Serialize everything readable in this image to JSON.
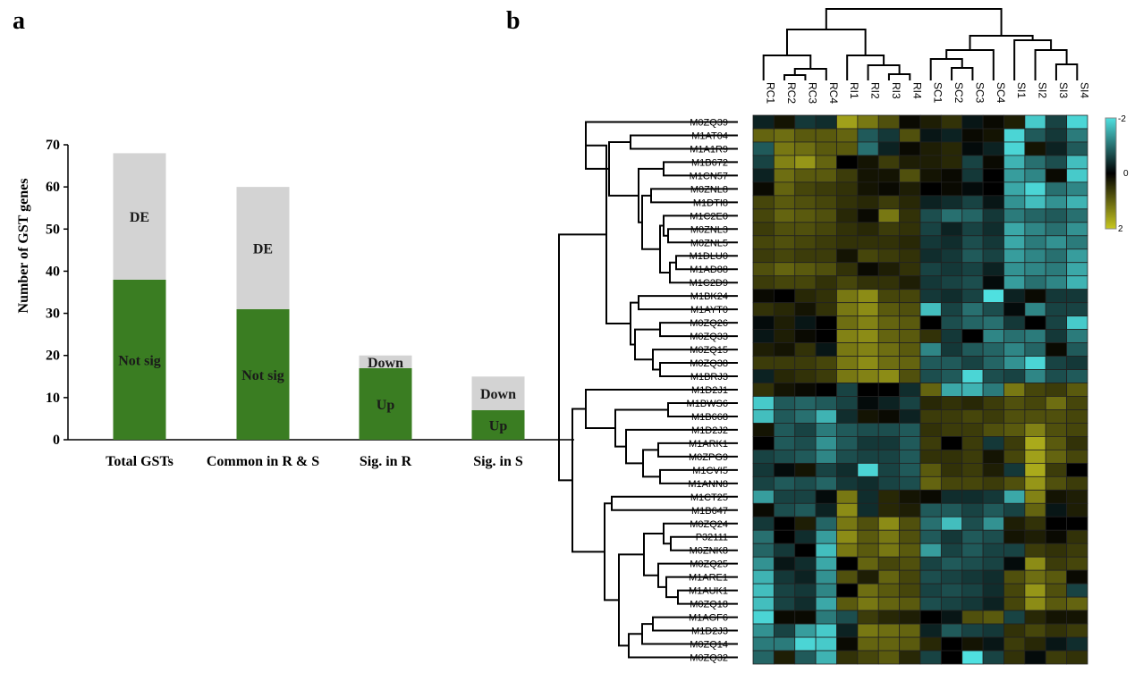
{
  "colors": {
    "up_green": "#3a7d22",
    "de_grey": "#d3d3d3",
    "heat_low": "#c8c820",
    "heat_mid": "#000000",
    "heat_high": "#4fe0e0"
  },
  "panels": {
    "a": "a",
    "b": "b"
  },
  "chart_data": [
    {
      "type": "bar",
      "stacked": true,
      "title": "",
      "xlabel": "",
      "ylabel": "Number of GST genes",
      "ylim": [
        0,
        70
      ],
      "yticks": [
        0,
        10,
        20,
        30,
        40,
        50,
        60,
        70
      ],
      "categories": [
        "Total GSTs",
        "Common in R & S",
        "Sig. in R",
        "Sig. in S"
      ],
      "segments": [
        {
          "category": "Total GSTs",
          "bottom": {
            "label": "Not sig",
            "value": 38
          },
          "top": {
            "label": "DE",
            "value": 30
          },
          "total": 68
        },
        {
          "category": "Common in R & S",
          "bottom": {
            "label": "Not sig",
            "value": 31
          },
          "top": {
            "label": "DE",
            "value": 29
          },
          "total": 60
        },
        {
          "category": "Sig. in R",
          "bottom": {
            "label": "Up",
            "value": 17
          },
          "top": {
            "label": "Down",
            "value": 3
          },
          "total": 20
        },
        {
          "category": "Sig. in S",
          "bottom": {
            "label": "Up",
            "value": 7
          },
          "top": {
            "label": "Down",
            "value": 8
          },
          "total": 15
        }
      ],
      "grid": false,
      "legend": "none"
    },
    {
      "type": "heatmap",
      "title": "",
      "columns": [
        "RC1",
        "RC2",
        "RC3",
        "RC4",
        "RI1",
        "RI2",
        "RI3",
        "RI4",
        "SC1",
        "SC2",
        "SC3",
        "SC4",
        "SI1",
        "SI2",
        "SI3",
        "SI4"
      ],
      "rows": [
        "M0ZQ39",
        "M1AT04",
        "M1A1R9",
        "M1B672",
        "M1CN57",
        "M0ZNL8",
        "M1DTI8",
        "M1C2E0",
        "M0ZNL3",
        "M0ZNL5",
        "M1DLU0",
        "M1AD88",
        "M1C2D9",
        "M1BK24",
        "M1AYT0",
        "M0ZQ26",
        "M0ZQ33",
        "M0ZQ15",
        "M0ZQ38",
        "M1BRJ3",
        "M1D2J1",
        "M1BWS6",
        "M1B668",
        "M1D2J2",
        "M1ARK1",
        "M0ZPG9",
        "M1CVI5",
        "M1ANN8",
        "M1CT25",
        "M1B647",
        "M0ZQ24",
        "P32111",
        "M0ZNK8",
        "M0ZQ25",
        "M1ARE1",
        "M1AUK1",
        "M0ZQ18",
        "M1AGF6",
        "M1D2J3",
        "M0ZQ14",
        "M0ZQ32"
      ],
      "values": [
        [
          -0.3,
          0.2,
          -0.5,
          -0.4,
          1.6,
          1.2,
          0.8,
          0.1,
          0.3,
          0.5,
          -0.2,
          0.1,
          0.3,
          -1.8,
          -0.6,
          -1.9
        ],
        [
          1.0,
          1.1,
          0.9,
          0.9,
          1.0,
          -0.8,
          -0.5,
          0.8,
          -0.2,
          -0.3,
          0.1,
          0.2,
          -1.9,
          -0.8,
          -0.5,
          -1.1
        ],
        [
          -0.8,
          1.2,
          1.1,
          0.9,
          0.9,
          -1.0,
          -0.3,
          0.1,
          0.3,
          0.4,
          -0.1,
          -0.3,
          -1.9,
          0.2,
          -0.3,
          -0.8
        ],
        [
          -0.6,
          1.3,
          1.5,
          1.0,
          0.0,
          0.2,
          0.6,
          0.3,
          0.3,
          0.4,
          -0.6,
          0.1,
          -1.6,
          -1.0,
          -0.7,
          -1.7
        ],
        [
          -0.3,
          1.1,
          0.9,
          0.9,
          0.6,
          0.2,
          0.2,
          0.8,
          0.2,
          0.1,
          -0.5,
          0.0,
          -1.4,
          -1.2,
          0.1,
          -1.8
        ],
        [
          0.1,
          1.0,
          0.7,
          0.6,
          0.5,
          0.2,
          0.1,
          0.3,
          0.0,
          0.1,
          -0.1,
          0.0,
          -1.5,
          -1.9,
          -1.0,
          -1.2
        ],
        [
          0.7,
          0.9,
          0.8,
          0.7,
          0.5,
          0.4,
          0.6,
          0.4,
          -0.3,
          -0.4,
          -0.6,
          -0.2,
          -1.3,
          -1.7,
          -1.3,
          -1.6
        ],
        [
          0.7,
          1.0,
          0.9,
          0.8,
          0.4,
          0.1,
          1.2,
          0.5,
          -0.7,
          -1.0,
          -0.9,
          -0.5,
          -1.1,
          -0.9,
          -0.8,
          -1.0
        ],
        [
          0.6,
          0.8,
          0.8,
          0.7,
          0.5,
          0.4,
          0.6,
          0.5,
          -0.6,
          -0.3,
          -0.6,
          -0.4,
          -1.5,
          -1.2,
          -1.0,
          -1.3
        ],
        [
          0.7,
          0.8,
          0.7,
          0.6,
          0.5,
          0.5,
          0.5,
          0.4,
          -0.5,
          -0.4,
          -0.7,
          -0.5,
          -1.5,
          -1.1,
          -1.3,
          -1.1
        ],
        [
          0.6,
          0.7,
          0.6,
          0.6,
          0.2,
          0.7,
          0.6,
          0.5,
          -0.4,
          -0.5,
          -0.8,
          -0.6,
          -1.4,
          -1.2,
          -1.0,
          -1.4
        ],
        [
          0.8,
          1.0,
          0.9,
          0.8,
          0.5,
          0.1,
          0.3,
          0.5,
          -0.6,
          -0.5,
          -0.6,
          -0.3,
          -1.3,
          -1.2,
          -1.1,
          -1.5
        ],
        [
          0.6,
          0.7,
          0.7,
          0.5,
          0.7,
          0.5,
          0.5,
          0.3,
          -0.5,
          -0.6,
          -0.7,
          -0.1,
          -1.4,
          -1.0,
          -1.2,
          -1.6
        ],
        [
          0.1,
          0.0,
          0.4,
          0.5,
          1.2,
          1.4,
          0.7,
          0.7,
          -0.5,
          -0.4,
          -0.6,
          -2.0,
          -0.3,
          0.1,
          -0.5,
          -0.5
        ],
        [
          0.5,
          0.4,
          0.2,
          0.5,
          1.2,
          1.4,
          0.9,
          0.8,
          -1.7,
          -0.6,
          -1.0,
          -0.7,
          -0.1,
          -1.2,
          -0.6,
          -0.6
        ],
        [
          -0.1,
          0.3,
          -0.2,
          0.0,
          1.1,
          1.3,
          1.0,
          0.9,
          0.0,
          -0.7,
          -0.9,
          -1.0,
          -0.5,
          0.0,
          -0.6,
          -1.8
        ],
        [
          -0.2,
          0.3,
          0.1,
          0.0,
          1.3,
          1.4,
          1.0,
          0.9,
          0.5,
          -0.5,
          0.0,
          -1.2,
          -1.0,
          -1.1,
          -0.5,
          -1.1
        ],
        [
          0.3,
          0.2,
          0.5,
          -0.2,
          1.2,
          1.3,
          1.1,
          0.9,
          -1.2,
          -0.5,
          -0.8,
          -0.9,
          -1.2,
          -0.9,
          0.1,
          -0.8
        ],
        [
          0.6,
          0.6,
          0.6,
          0.7,
          1.2,
          1.4,
          1.1,
          1.0,
          -0.8,
          -0.8,
          -0.6,
          -0.9,
          -1.3,
          -1.9,
          -0.6,
          -0.5
        ],
        [
          -0.3,
          0.4,
          0.5,
          0.6,
          1.2,
          1.3,
          1.4,
          0.8,
          -0.7,
          -0.8,
          -1.9,
          -0.7,
          -0.6,
          -1.2,
          -0.7,
          -0.8
        ],
        [
          0.5,
          0.2,
          0.1,
          0.0,
          -0.6,
          0.0,
          0.0,
          -0.4,
          1.0,
          -1.5,
          -1.6,
          -1.1,
          1.2,
          0.7,
          0.6,
          0.9
        ],
        [
          -1.8,
          -0.8,
          -0.9,
          -0.8,
          -0.6,
          -0.1,
          -0.3,
          -0.6,
          0.4,
          0.5,
          0.4,
          0.6,
          0.8,
          0.7,
          1.1,
          0.7
        ],
        [
          -1.7,
          -0.8,
          -1.0,
          -1.6,
          -0.4,
          0.2,
          0.1,
          -0.3,
          0.6,
          0.6,
          0.7,
          0.6,
          0.8,
          0.8,
          0.8,
          0.7
        ],
        [
          0.2,
          -0.8,
          -0.6,
          -1.1,
          -0.8,
          -0.7,
          -0.7,
          -0.8,
          0.5,
          0.6,
          0.6,
          0.8,
          0.9,
          1.3,
          0.8,
          0.7
        ],
        [
          0.0,
          -0.8,
          -0.7,
          -1.3,
          -0.8,
          -0.5,
          -0.5,
          -0.8,
          0.6,
          0.0,
          0.6,
          -0.5,
          0.6,
          1.7,
          0.9,
          0.5
        ],
        [
          -0.6,
          -0.7,
          -0.8,
          -1.2,
          -0.7,
          -0.6,
          -0.6,
          -0.8,
          0.5,
          0.5,
          0.6,
          0.2,
          0.7,
          1.6,
          1.0,
          0.7
        ],
        [
          -0.5,
          -0.1,
          0.2,
          -0.6,
          -0.4,
          -1.9,
          -0.6,
          -0.8,
          0.9,
          0.5,
          0.6,
          0.3,
          -0.5,
          1.7,
          0.6,
          0.0
        ],
        [
          -0.6,
          -0.8,
          -0.7,
          -0.9,
          -0.5,
          -0.4,
          -0.6,
          -0.7,
          1.0,
          0.7,
          0.7,
          0.6,
          0.8,
          1.5,
          0.8,
          0.6
        ],
        [
          -1.4,
          -0.6,
          -0.6,
          -0.1,
          1.2,
          -0.4,
          0.4,
          0.2,
          0.1,
          -0.4,
          -0.4,
          -0.5,
          -1.5,
          1.3,
          0.2,
          0.3
        ],
        [
          0.1,
          -0.7,
          -0.8,
          -0.3,
          1.4,
          -0.4,
          0.4,
          0.3,
          -0.8,
          -0.8,
          -0.6,
          -0.8,
          -0.6,
          1.0,
          -0.2,
          0.3
        ],
        [
          -0.5,
          0.0,
          0.3,
          -0.9,
          1.2,
          0.8,
          1.4,
          0.8,
          -1.0,
          -1.7,
          -0.7,
          -1.3,
          0.3,
          0.5,
          0.0,
          0.0
        ],
        [
          -1.0,
          0.0,
          -0.4,
          -1.4,
          1.4,
          0.9,
          1.2,
          0.8,
          -0.8,
          -0.5,
          -0.8,
          -0.7,
          0.2,
          0.3,
          0.1,
          0.5
        ],
        [
          -0.9,
          -0.5,
          0.0,
          -1.7,
          1.2,
          0.9,
          1.2,
          0.9,
          -1.4,
          -0.6,
          -0.8,
          -0.6,
          -0.6,
          0.6,
          0.5,
          0.6
        ],
        [
          -1.3,
          -0.2,
          -0.4,
          -1.5,
          0.0,
          1.0,
          0.7,
          0.8,
          -0.6,
          -0.8,
          -0.7,
          -0.6,
          -0.1,
          1.4,
          0.6,
          0.7
        ],
        [
          -1.6,
          -0.5,
          -0.3,
          -1.3,
          0.8,
          0.3,
          1.0,
          0.7,
          -0.7,
          -0.6,
          -0.5,
          -0.4,
          0.8,
          1.1,
          0.9,
          0.1
        ],
        [
          -1.7,
          -0.6,
          -0.5,
          -1.2,
          0.0,
          1.1,
          0.9,
          0.7,
          -0.6,
          -0.7,
          -0.6,
          -0.4,
          0.7,
          1.5,
          0.8,
          -0.6
        ],
        [
          -1.7,
          -0.6,
          -0.4,
          -1.5,
          0.9,
          1.2,
          1.0,
          0.9,
          -0.7,
          -0.6,
          -0.5,
          -0.3,
          0.7,
          1.4,
          0.9,
          1.0
        ],
        [
          -1.9,
          0.1,
          0.1,
          -1.1,
          -0.7,
          0.6,
          0.4,
          0.3,
          0.0,
          -0.2,
          0.8,
          0.9,
          -0.6,
          0.4,
          0.2,
          0.2
        ],
        [
          -1.3,
          -0.6,
          -1.4,
          -1.8,
          -0.3,
          1.2,
          1.1,
          1.0,
          -0.3,
          -0.8,
          -0.6,
          -0.5,
          0.5,
          0.7,
          0.5,
          0.6
        ],
        [
          -1.1,
          -1.1,
          -1.9,
          -1.8,
          0.1,
          1.0,
          1.0,
          0.9,
          0.4,
          0.0,
          0.2,
          -0.2,
          0.6,
          0.4,
          -0.2,
          -0.4
        ],
        [
          -0.9,
          0.3,
          -0.8,
          -1.6,
          0.5,
          0.7,
          0.9,
          0.4,
          -0.6,
          0.0,
          -2.0,
          -0.6,
          0.5,
          -0.1,
          0.6,
          0.5
        ]
      ],
      "colorbar": {
        "ticks": [
          "-2",
          "0",
          "2"
        ]
      },
      "row_dendrogram": true,
      "column_dendrogram": true
    }
  ]
}
